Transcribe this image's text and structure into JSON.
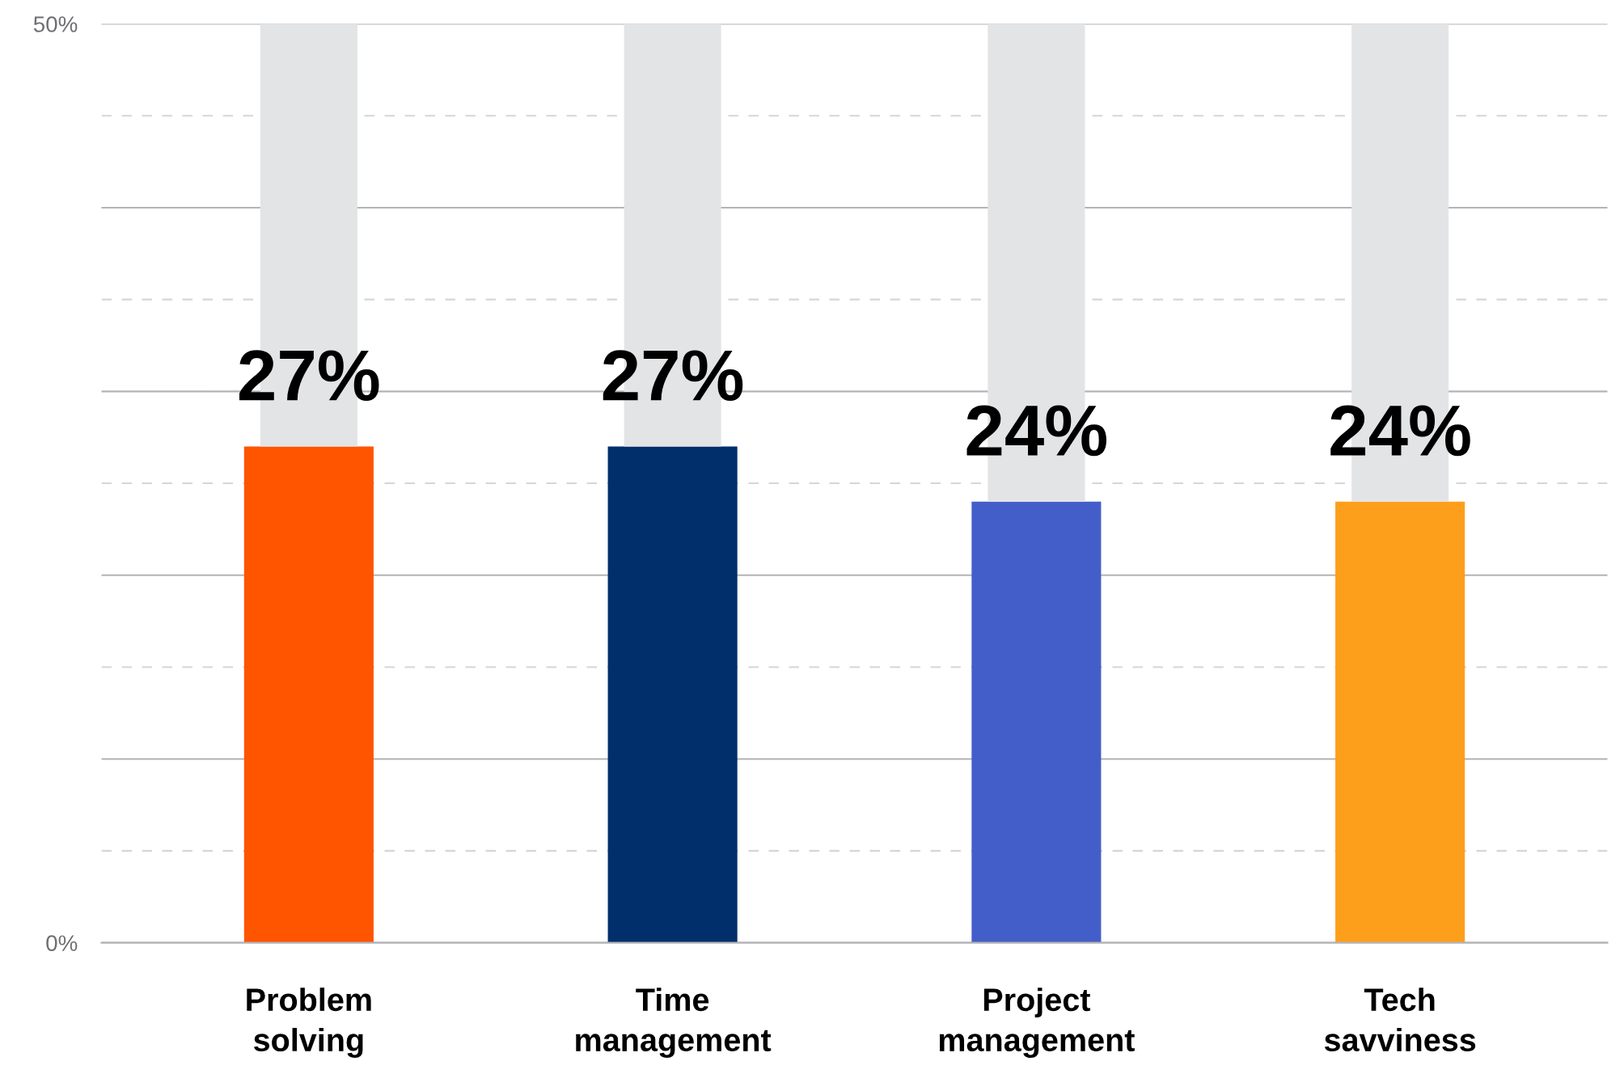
{
  "chart_data": {
    "type": "bar",
    "stacked": true,
    "categories": [
      "Problem\nsolving",
      "Time\nmanagement",
      "Project\nmanagement",
      "Tech\nsavviness"
    ],
    "series": [
      {
        "colors": [
          "#ff5400",
          "#002f6c",
          "#445ec9",
          "#fe9f1b"
        ],
        "values": [
          27,
          27,
          24,
          24
        ],
        "value_labels": [
          "27%",
          "27%",
          "24%",
          "24%"
        ]
      },
      {
        "color": "#e3e4e6",
        "values": [
          23,
          23,
          26,
          26
        ]
      }
    ],
    "ylim": [
      0,
      50
    ],
    "yticks": [
      {
        "value": 0,
        "label": "0%"
      },
      {
        "value": 10,
        "label": null
      },
      {
        "value": 20,
        "label": null
      },
      {
        "value": 30,
        "label": null
      },
      {
        "value": 40,
        "label": null
      },
      {
        "value": 50,
        "label": "50%"
      }
    ],
    "grid": "y",
    "ref_lines": [
      {
        "axis": "y",
        "value": 5,
        "line_style": "dashed",
        "color": "#d6d6da"
      },
      {
        "axis": "y",
        "value": 15,
        "line_style": "dashed",
        "color": "#d6d6da"
      },
      {
        "axis": "y",
        "value": 25,
        "line_style": "dashed",
        "color": "#d6d6da"
      },
      {
        "axis": "y",
        "value": 35,
        "line_style": "dashed",
        "color": "#d6d6da"
      },
      {
        "axis": "y",
        "value": 45,
        "line_style": "dashed",
        "color": "#d6d6da"
      }
    ]
  }
}
